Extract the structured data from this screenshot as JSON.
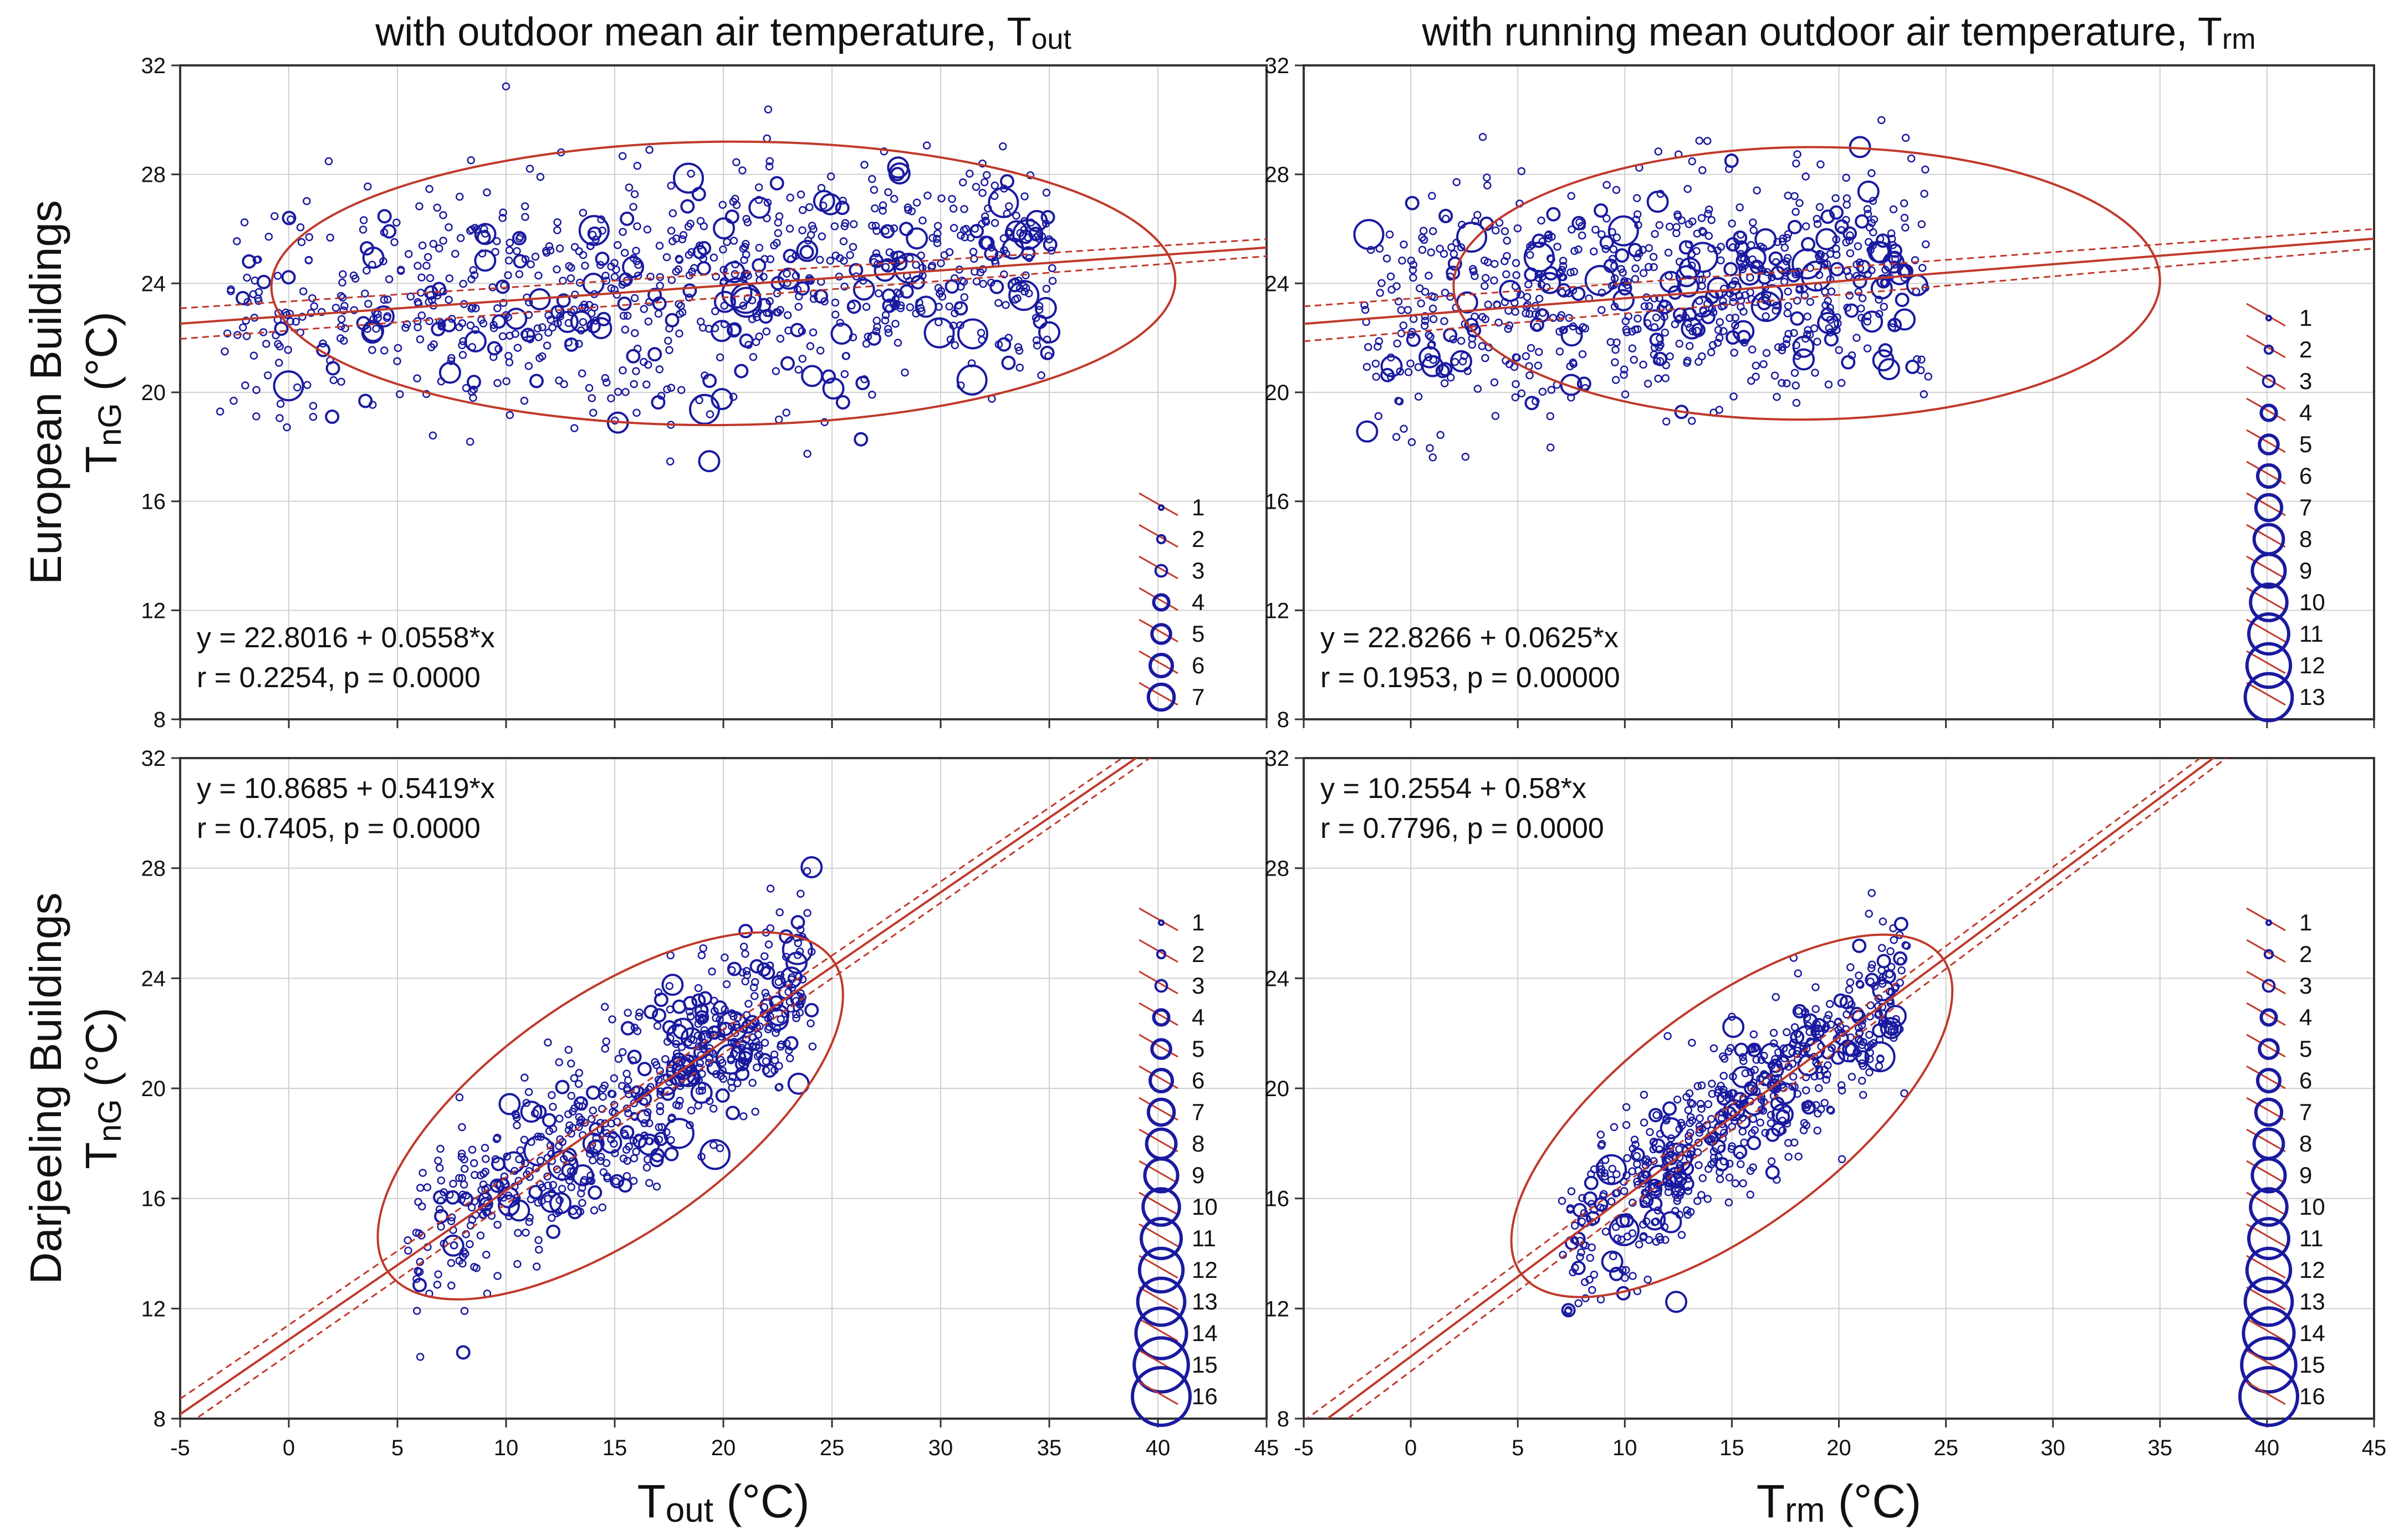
{
  "colors": {
    "regression": "#c0392b",
    "points": "#1a1aa0",
    "axis": "#333333",
    "grid": "#d0d0d0",
    "text": "#111111"
  },
  "chart_data": [
    {
      "type": "scatter",
      "id": "top-left",
      "title": "with outdoor mean air temperature, T",
      "title_sub": "out",
      "ylabel": "European Buildings",
      "ylabel2_main": "T",
      "ylabel2_sub": "nG",
      "ylabel2_unit": " (°C)",
      "xlabel": "",
      "xlim": [
        -5,
        45
      ],
      "ylim": [
        8,
        32
      ],
      "xticks": [
        -5,
        0,
        5,
        10,
        15,
        20,
        25,
        30,
        35,
        40,
        45
      ],
      "yticks": [
        8,
        12,
        16,
        20,
        24,
        28,
        32
      ],
      "x_tick_labels_visible": false,
      "regression": {
        "intercept": 22.8016,
        "slope": 0.0558,
        "ci": 0.35
      },
      "equation": "y = 22.8016 + 0.0558*x",
      "stats": "r = 0.2254, p = 0.0000",
      "ellipse": {
        "cx": 20,
        "cy": 24,
        "rx": 20.8,
        "ry": 5.2,
        "angle_deg": 0.5
      },
      "points_gen": {
        "seed": 11,
        "n": 900,
        "xmin": -3,
        "xmax": 35,
        "sy": 2.1
      },
      "legend": [
        "1",
        "2",
        "3",
        "4",
        "5",
        "6",
        "7"
      ]
    },
    {
      "type": "scatter",
      "id": "top-right",
      "title": "with running mean  outdoor air temperature, T",
      "title_sub": "rm",
      "xlabel": "",
      "xlim": [
        -5,
        45
      ],
      "ylim": [
        8,
        32
      ],
      "xticks": [
        -5,
        0,
        5,
        10,
        15,
        20,
        25,
        30,
        35,
        40,
        45
      ],
      "yticks": [
        8,
        12,
        16,
        20,
        24,
        28,
        32
      ],
      "x_tick_labels_visible": false,
      "regression": {
        "intercept": 22.8266,
        "slope": 0.0625,
        "ci": 0.4
      },
      "equation": "y = 22.8266 + 0.0625*x",
      "stats": "r = 0.1953, p = 0.00000",
      "ellipse": {
        "cx": 18.5,
        "cy": 24,
        "rx": 16.5,
        "ry": 5.0,
        "angle_deg": 0.5
      },
      "points_gen": {
        "seed": 23,
        "n": 750,
        "xmin": -2,
        "xmax": 24,
        "sy": 2.1
      },
      "legend": [
        "1",
        "2",
        "3",
        "4",
        "5",
        "6",
        "7",
        "8",
        "9",
        "10",
        "11",
        "12",
        "13"
      ]
    },
    {
      "type": "scatter",
      "id": "bottom-left",
      "ylabel": "Darjeeling Buildings",
      "ylabel2_main": "T",
      "ylabel2_sub": "nG",
      "ylabel2_unit": " (°C)",
      "xlabel_main": "T",
      "xlabel_sub": "out",
      "xlabel_unit": " (°C)",
      "xlim": [
        -5,
        45
      ],
      "ylim": [
        8,
        32
      ],
      "xticks": [
        -5,
        0,
        5,
        10,
        15,
        20,
        25,
        30,
        35,
        40,
        45
      ],
      "yticks": [
        8,
        12,
        16,
        20,
        24,
        28,
        32
      ],
      "x_tick_labels_visible": true,
      "regression": {
        "intercept": 10.8685,
        "slope": 0.5419,
        "ci": 0.35
      },
      "equation": "y = 10.8685 + 0.5419*x",
      "stats": "r = 0.7405, p = 0.0000",
      "ellipse": {
        "cx": 14.8,
        "cy": 19,
        "rx": 12.5,
        "ry": 4.3,
        "angle_deg": 35
      },
      "points_gen": {
        "seed": 37,
        "n": 650,
        "xmin": 5.5,
        "xmax": 24,
        "sy": 1.6
      },
      "legend": [
        "1",
        "2",
        "3",
        "4",
        "5",
        "6",
        "7",
        "8",
        "9",
        "10",
        "11",
        "12",
        "13",
        "14",
        "15",
        "16"
      ]
    },
    {
      "type": "scatter",
      "id": "bottom-right",
      "xlabel_main": "T",
      "xlabel_sub": "rm",
      "xlabel_unit": " (°C)",
      "xlim": [
        -5,
        45
      ],
      "ylim": [
        8,
        32
      ],
      "xticks": [
        -5,
        0,
        5,
        10,
        15,
        20,
        25,
        30,
        35,
        40,
        45
      ],
      "yticks": [
        8,
        12,
        16,
        20,
        24,
        28,
        32
      ],
      "x_tick_labels_visible": true,
      "regression": {
        "intercept": 10.2554,
        "slope": 0.58,
        "ci": 0.35
      },
      "equation": "y = 10.2554 + 0.58*x",
      "stats": "r = 0.7796, p = 0.0000",
      "ellipse": {
        "cx": 15,
        "cy": 19,
        "rx": 12.3,
        "ry": 4.0,
        "angle_deg": 37
      },
      "points_gen": {
        "seed": 53,
        "n": 600,
        "xmin": 7,
        "xmax": 23,
        "sy": 1.5
      },
      "legend": [
        "1",
        "2",
        "3",
        "4",
        "5",
        "6",
        "7",
        "8",
        "9",
        "10",
        "11",
        "12",
        "13",
        "14",
        "15",
        "16"
      ]
    }
  ]
}
